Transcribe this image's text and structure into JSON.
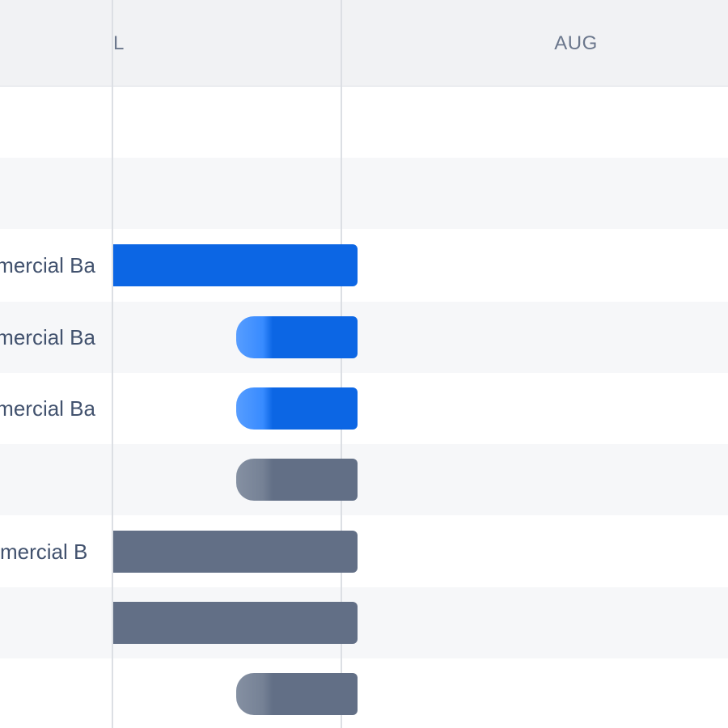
{
  "timeline": {
    "months": [
      "L",
      "AUG"
    ]
  },
  "rows": [
    {
      "label": "",
      "bar": null
    },
    {
      "label": "",
      "bar": null
    },
    {
      "label": "mercial Ba",
      "bar": {
        "status": "in-progress",
        "color": "#0c66e4"
      }
    },
    {
      "label": "mercial Ba",
      "bar": {
        "status": "in-progress",
        "color": "#0c66e4"
      }
    },
    {
      "label": "mercial Ba",
      "bar": {
        "status": "in-progress",
        "color": "#0c66e4"
      }
    },
    {
      "label": "",
      "bar": {
        "status": "todo",
        "color": "#626f86"
      }
    },
    {
      "label": "mercial B",
      "bar": {
        "status": "todo",
        "color": "#626f86"
      }
    },
    {
      "label": "",
      "bar": {
        "status": "todo",
        "color": "#626f86"
      }
    },
    {
      "label": "",
      "bar": {
        "status": "todo",
        "color": "#626f86"
      }
    }
  ],
  "colors": {
    "in_progress": "#0c66e4",
    "todo": "#626f86",
    "header_bg": "#f1f2f4",
    "alt_row_bg": "#f6f7f9"
  }
}
